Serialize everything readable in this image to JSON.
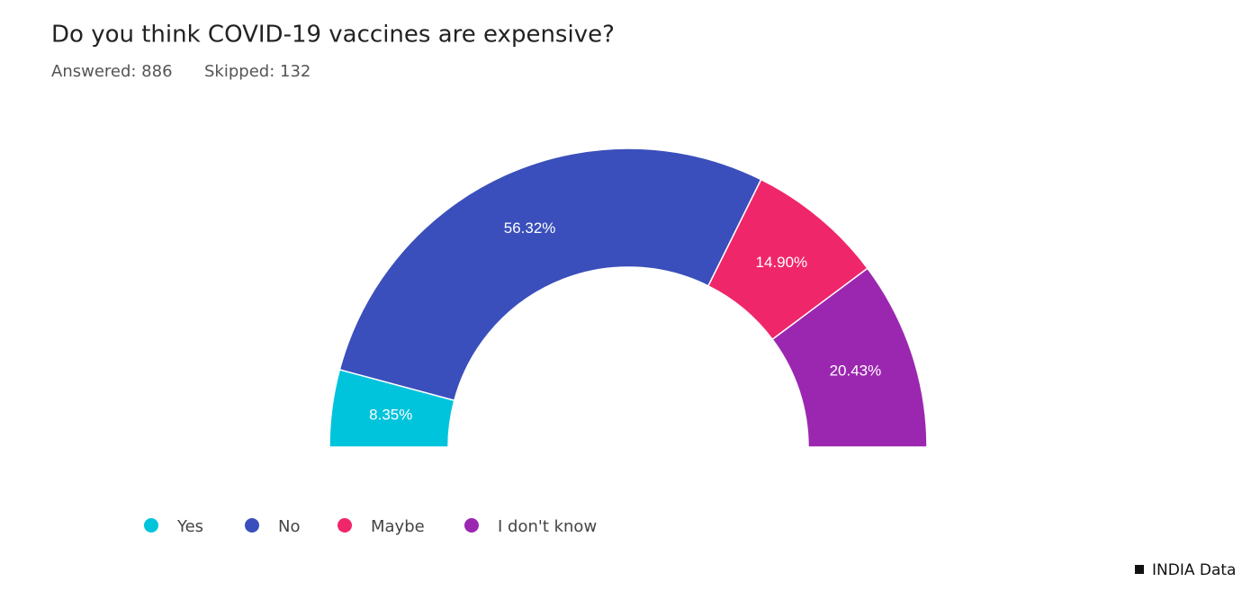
{
  "chart_data": {
    "type": "semi-donut",
    "title": "Do you think COVID-19 vaccines are expensive?",
    "answered": "Answered: 886",
    "skipped": "Skipped: 132",
    "categories": [
      "Yes",
      "No",
      "Maybe",
      "I don't know"
    ],
    "values": [
      8.35,
      56.32,
      14.9,
      20.43
    ],
    "value_labels": [
      "8.35%",
      "56.32%",
      "14.90%",
      "20.43%"
    ],
    "colors": [
      "#00c3dc",
      "#3a4fbb",
      "#f0266a",
      "#9b27b0"
    ],
    "source": "INDIA Data"
  }
}
